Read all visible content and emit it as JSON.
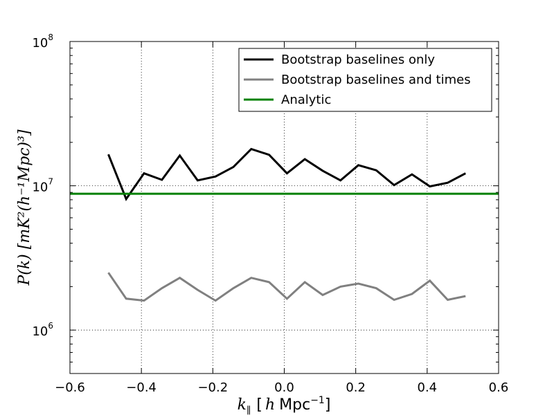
{
  "chart_data": {
    "type": "line",
    "title": "",
    "xlabel": {
      "k_sym": "k",
      "k_sub": "∥",
      "open": "[",
      "h": "h",
      "unit": "Mpc",
      "unit_exp": "−1",
      "close": "]"
    },
    "ylabel": "P(k) [mK²(h⁻¹Mpc)³]",
    "xlim": [
      -0.6,
      0.6
    ],
    "ylim": [
      500000,
      100000000
    ],
    "yscale": "log",
    "grid": true,
    "legend_position": "top-right",
    "x_ticks": [
      -0.6,
      -0.4,
      -0.2,
      0.0,
      0.2,
      0.4,
      0.6
    ],
    "x_tick_labels": [
      "−0.6",
      "−0.4",
      "−0.2",
      "0.0",
      "0.2",
      "0.4",
      "0.6"
    ],
    "y_ticks": [
      1000000,
      10000000,
      100000000
    ],
    "y_tick_labels": [
      {
        "base": "10",
        "exp": "6"
      },
      {
        "base": "10",
        "exp": "7"
      },
      {
        "base": "10",
        "exp": "8"
      }
    ],
    "x": [
      -0.4925,
      -0.4425,
      -0.3925,
      -0.3425,
      -0.2925,
      -0.2425,
      -0.1925,
      -0.1425,
      -0.0925,
      -0.0425,
      0.0075,
      0.0575,
      0.1075,
      0.1575,
      0.2075,
      0.2575,
      0.3075,
      0.3575,
      0.4075,
      0.4575,
      0.5075
    ],
    "series": [
      {
        "name": "Bootstrap baselines only",
        "color": "#000000",
        "values": [
          16500000,
          8100000,
          12200000,
          11000000,
          16200000,
          10900000,
          11600000,
          13500000,
          18000000,
          16400000,
          12200000,
          15300000,
          12700000,
          10900000,
          13900000,
          12800000,
          10100000,
          12000000,
          9900000,
          10500000,
          12200000
        ]
      },
      {
        "name": "Bootstrap baselines and times",
        "color": "#808080",
        "values": [
          2500000,
          1650000,
          1600000,
          1950000,
          2300000,
          1900000,
          1600000,
          1950000,
          2300000,
          2150000,
          1650000,
          2150000,
          1750000,
          2000000,
          2100000,
          1950000,
          1620000,
          1780000,
          2200000,
          1620000,
          1720000
        ]
      },
      {
        "name": "Analytic",
        "color": "#008000",
        "constant": 8800000
      }
    ]
  }
}
